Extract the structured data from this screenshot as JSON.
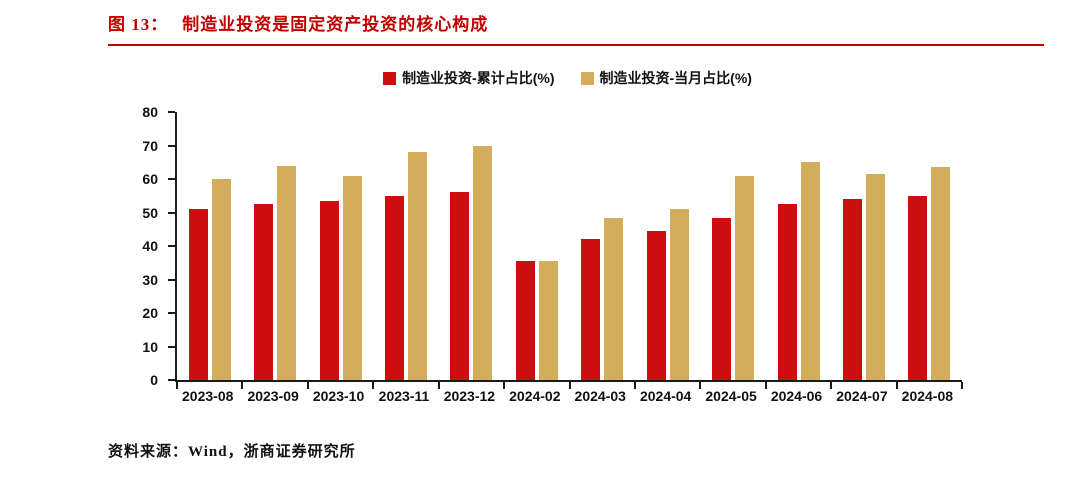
{
  "header": {
    "figure_label": "图 13：",
    "title": "制造业投资是固定资产投资的核心构成",
    "accent_color": "#c00000"
  },
  "legend": [
    {
      "label": "制造业投资-累计占比(%)",
      "color": "#cc0e0e"
    },
    {
      "label": "制造业投资-当月占比(%)",
      "color": "#d3ad5c"
    }
  ],
  "footer": {
    "source": "资料来源：Wind，浙商证券研究所"
  },
  "chart_data": {
    "type": "bar",
    "title": "制造业投资是固定资产投资的核心构成",
    "categories": [
      "2023-08",
      "2023-09",
      "2023-10",
      "2023-11",
      "2023-12",
      "2024-02",
      "2024-03",
      "2024-04",
      "2024-05",
      "2024-06",
      "2024-07",
      "2024-08"
    ],
    "series": [
      {
        "key": "cumulative",
        "name": "制造业投资-累计占比(%)",
        "color": "#cc0e0e",
        "values": [
          51,
          52.5,
          53.5,
          55,
          56,
          35.5,
          42,
          44.5,
          48.5,
          52.5,
          54,
          55
        ]
      },
      {
        "key": "monthly",
        "name": "制造业投资-当月占比(%)",
        "color": "#d3ad5c",
        "values": [
          60,
          64,
          61,
          68,
          70,
          35.5,
          48.5,
          51,
          61,
          65,
          61.5,
          63.5
        ]
      }
    ],
    "xlabel": "",
    "ylabel": "",
    "ylim": [
      0,
      80
    ],
    "yticks": [
      0,
      10,
      20,
      30,
      40,
      50,
      60,
      70,
      80
    ],
    "grid": false,
    "legend_position": "top"
  }
}
